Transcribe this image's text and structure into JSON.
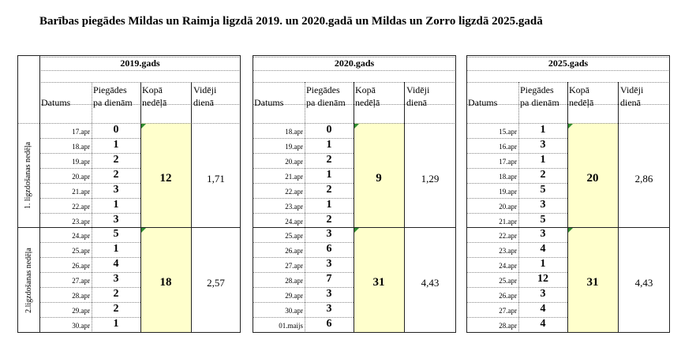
{
  "title": "Barības piegādes Mildas un Raimja ligzdā 2019. un 2020.gadā un Mildas un Zorro ligzdā 2025.gadā",
  "columns": {
    "date": "Datums",
    "per_day_1": "Piegādes",
    "per_day_2": "pa dienām",
    "week_1": "Kopā",
    "week_2": "nedēļā",
    "avg_1": "Vidēji",
    "avg_2": "dienā"
  },
  "week_labels": [
    "1. ligzdošanas nedēļa",
    "2.ligzdošanas nedēļa"
  ],
  "tables": [
    {
      "year": "2019.gads",
      "weeks": [
        {
          "rows": [
            [
              "17.apr",
              "0"
            ],
            [
              "18.apr",
              "1"
            ],
            [
              "19.apr",
              "2"
            ],
            [
              "20.apr",
              "2"
            ],
            [
              "21.apr",
              "3"
            ],
            [
              "22.apr",
              "1"
            ],
            [
              "23.apr",
              "3"
            ]
          ],
          "total": "12",
          "avg": "1,71"
        },
        {
          "rows": [
            [
              "24.apr",
              "5"
            ],
            [
              "25.apr",
              "1"
            ],
            [
              "26.apr",
              "4"
            ],
            [
              "27.apr",
              "3"
            ],
            [
              "28.apr",
              "2"
            ],
            [
              "29.apr",
              "2"
            ],
            [
              "30.apr",
              "1"
            ]
          ],
          "total": "18",
          "avg": "2,57"
        }
      ]
    },
    {
      "year": "2020.gads",
      "weeks": [
        {
          "rows": [
            [
              "18.apr",
              "0"
            ],
            [
              "19.apr",
              "1"
            ],
            [
              "20.apr",
              "2"
            ],
            [
              "21.apr",
              "1"
            ],
            [
              "22.apr",
              "2"
            ],
            [
              "23.apr",
              "1"
            ],
            [
              "24.apr",
              "2"
            ]
          ],
          "total": "9",
          "avg": "1,29"
        },
        {
          "rows": [
            [
              "25.apr",
              "3"
            ],
            [
              "26.apr",
              "6"
            ],
            [
              "27.apr",
              "3"
            ],
            [
              "28.apr",
              "7"
            ],
            [
              "29.apr",
              "3"
            ],
            [
              "30.apr",
              "3"
            ],
            [
              "01.maijs",
              "6"
            ]
          ],
          "total": "31",
          "avg": "4,43"
        }
      ]
    },
    {
      "year": "2025.gads",
      "weeks": [
        {
          "rows": [
            [
              "15.apr",
              "1"
            ],
            [
              "16.apr",
              "3"
            ],
            [
              "17.apr",
              "1"
            ],
            [
              "18.apr",
              "2"
            ],
            [
              "19.apr",
              "5"
            ],
            [
              "20.apr",
              "3"
            ],
            [
              "21.apr",
              "5"
            ]
          ],
          "total": "20",
          "avg": "2,86"
        },
        {
          "rows": [
            [
              "22.apr",
              "3"
            ],
            [
              "23.apr",
              "4"
            ],
            [
              "24.apr",
              "1"
            ],
            [
              "25.apr",
              "12"
            ],
            [
              "26.apr",
              "3"
            ],
            [
              "27.apr",
              "4"
            ],
            [
              "28.apr",
              "4"
            ]
          ],
          "total": "31",
          "avg": "4,43"
        }
      ]
    }
  ],
  "colors": {
    "highlight": "#ffffcc",
    "comment_marker": "#2e8b2e"
  }
}
